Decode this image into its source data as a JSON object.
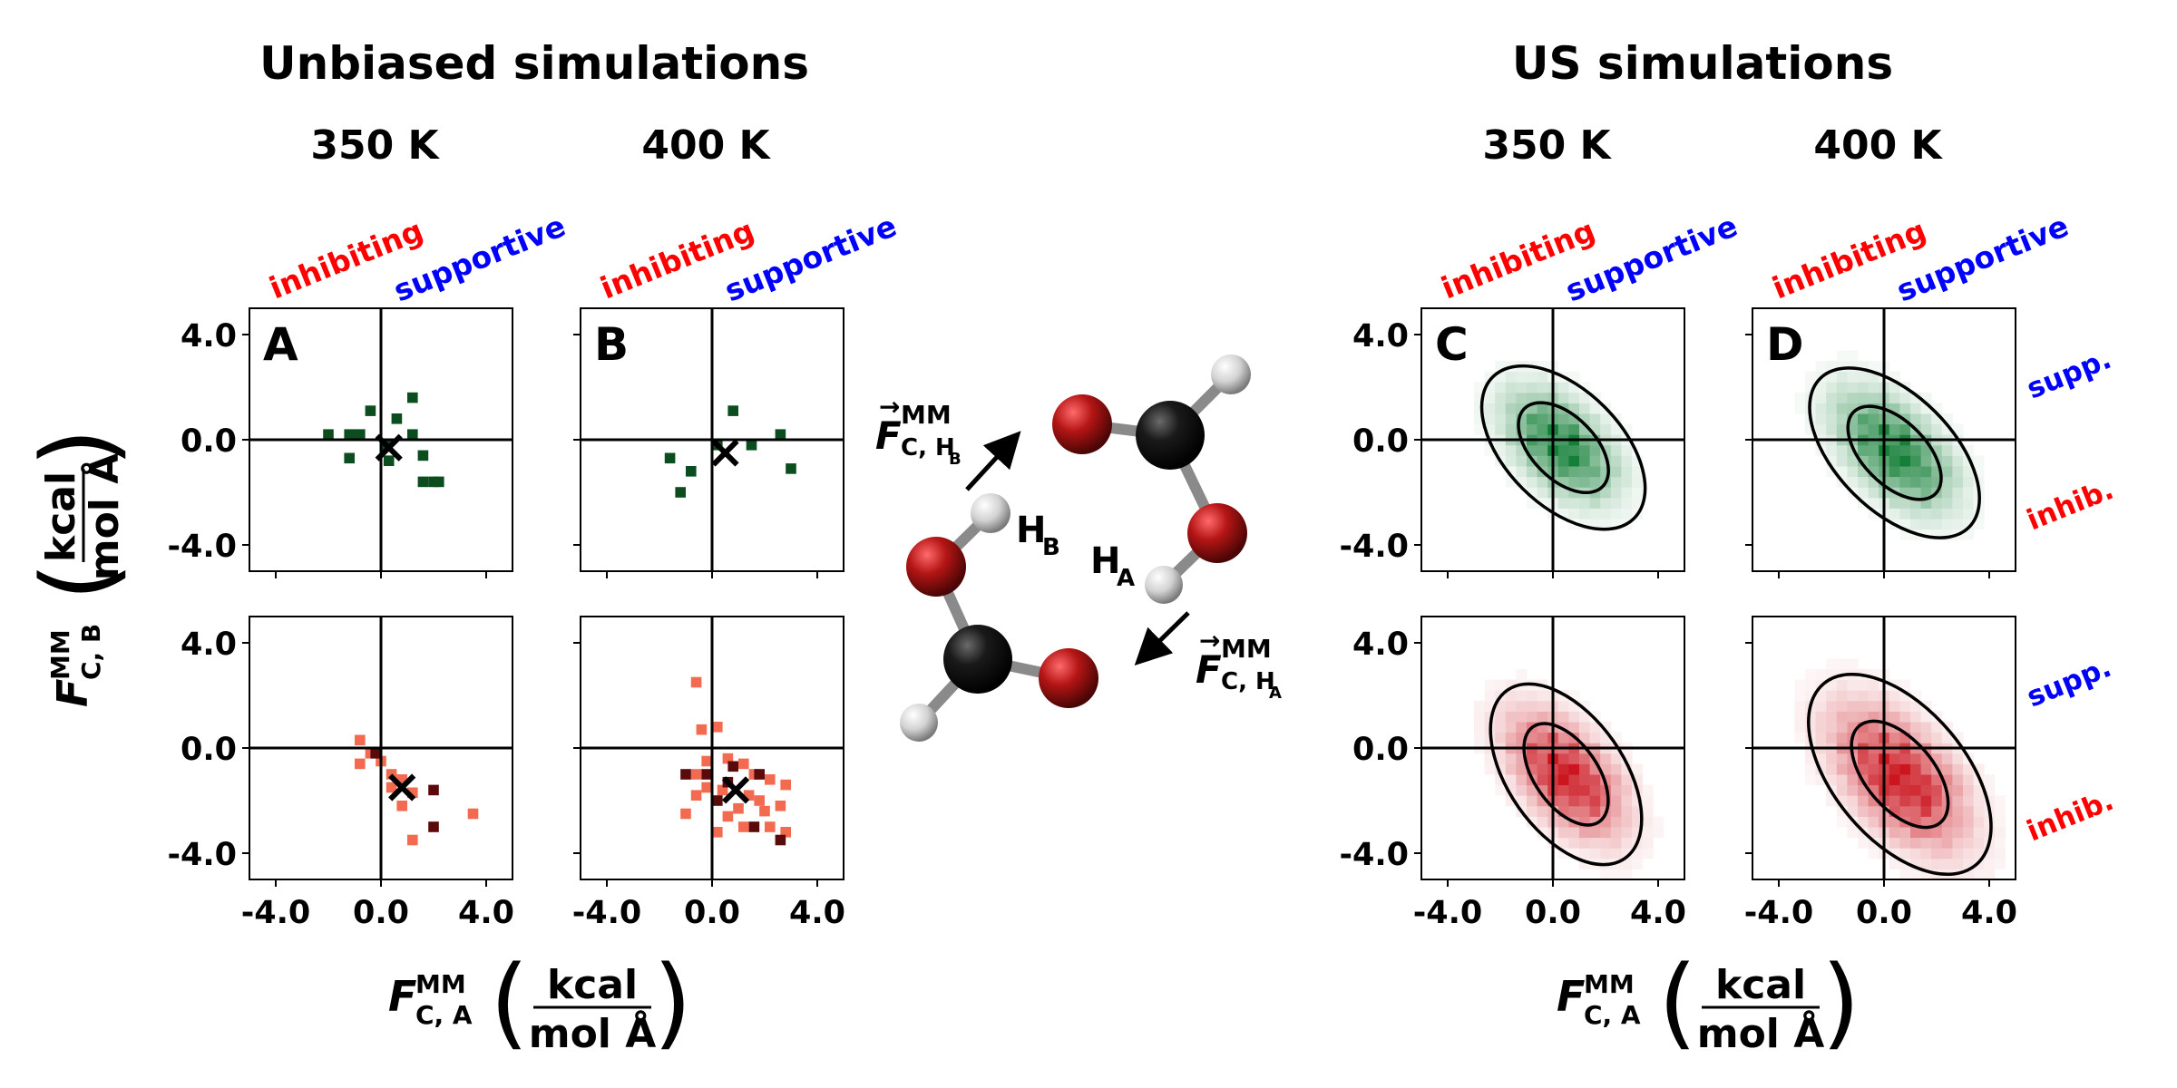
{
  "headers": {
    "left_title": "Unbiased simulations",
    "right_title": "US simulations",
    "temp_350": "350 K",
    "temp_400": "400 K",
    "inhibiting": "inhibiting",
    "supportive": "supportive",
    "supp_short": "supp.",
    "inhib_short": "inhib."
  },
  "axes": {
    "ylabel_main": "F",
    "ylabel_sup": "MM",
    "ylabel_sub": "C, B",
    "xlabel_main": "F",
    "xlabel_sup": "MM",
    "xlabel_sub": "C, A",
    "unit_num": "kcal",
    "unit_den": "mol Å",
    "xlim": [
      -5,
      5
    ],
    "ylim": [
      -5,
      5
    ],
    "ticks": [
      -4,
      0,
      4
    ],
    "tick_labels": [
      "-4.0",
      "0.0",
      "4.0"
    ]
  },
  "molecule": {
    "atom_hb": "H",
    "atom_hb_sub": "B",
    "atom_ha": "H",
    "atom_ha_sub": "A",
    "force_b_main": "F",
    "force_b_sup": "MM",
    "force_b_sub": "C, H",
    "force_b_subsub": "B",
    "force_a_main": "F",
    "force_a_sup": "MM",
    "force_a_sub": "C, H",
    "force_a_subsub": "A"
  },
  "colors": {
    "supportive": "#0000ff",
    "inhibiting": "#ff0000",
    "green_dark": "#0b4d1f",
    "red_light": "#f26b50",
    "red_dark": "#5a0a0a",
    "oxygen": "#b51515",
    "carbon": "#1a1a1a",
    "hydrogen": "#d8d8d8"
  },
  "chart_data": [
    {
      "type": "scatter",
      "panel": "A",
      "row": "green",
      "temperature": "350 K",
      "points": [
        [
          -2,
          0.2
        ],
        [
          -1.2,
          0.2
        ],
        [
          -0.8,
          0.2
        ],
        [
          -0.4,
          1.1
        ],
        [
          0.6,
          0.8
        ],
        [
          1.2,
          1.6
        ],
        [
          1.2,
          0.2
        ],
        [
          -1.2,
          -0.7
        ],
        [
          0.2,
          -0.2
        ],
        [
          0.3,
          -0.8
        ],
        [
          1.6,
          -0.6
        ],
        [
          2.0,
          -1.6
        ],
        [
          2.2,
          -1.6
        ],
        [
          1.6,
          -1.6
        ]
      ],
      "mean": [
        0.3,
        -0.3
      ]
    },
    {
      "type": "scatter",
      "panel": "B",
      "row": "green",
      "temperature": "400 K",
      "points": [
        [
          0.8,
          1.1
        ],
        [
          1.5,
          -0.2
        ],
        [
          2.6,
          0.2
        ],
        [
          3.0,
          -1.1
        ],
        [
          -1.6,
          -0.7
        ],
        [
          -0.8,
          -1.2
        ],
        [
          0.2,
          -0.2
        ],
        [
          -1.2,
          -2.0
        ]
      ],
      "mean": [
        0.5,
        -0.5
      ]
    },
    {
      "type": "scatter",
      "panel": "A",
      "row": "red",
      "temperature": "350 K",
      "points_light": [
        [
          -0.8,
          0.3
        ],
        [
          -0.4,
          -0.2
        ],
        [
          0,
          -0.5
        ],
        [
          -0.8,
          -0.6
        ],
        [
          0.4,
          -1.0
        ],
        [
          0.8,
          -1.2
        ],
        [
          1.2,
          -1.7
        ],
        [
          0.4,
          -1.5
        ],
        [
          0.8,
          -2.2
        ],
        [
          1.2,
          -3.5
        ],
        [
          3.5,
          -2.5
        ]
      ],
      "points_dark": [
        [
          -0.2,
          -0.2
        ],
        [
          2.0,
          -1.6
        ],
        [
          2.0,
          -3.0
        ]
      ],
      "mean": [
        0.8,
        -1.5
      ]
    },
    {
      "type": "scatter",
      "panel": "B",
      "row": "red",
      "temperature": "400 K",
      "points_light": [
        [
          -0.6,
          2.5
        ],
        [
          -0.4,
          0.7
        ],
        [
          0.2,
          0.8
        ],
        [
          -0.2,
          -0.5
        ],
        [
          -0.6,
          -1.0
        ],
        [
          0.6,
          -0.4
        ],
        [
          1.2,
          -0.6
        ],
        [
          1.6,
          -1.0
        ],
        [
          2.2,
          -1.2
        ],
        [
          2.8,
          -1.4
        ],
        [
          -0.2,
          -1.5
        ],
        [
          0.4,
          -1.6
        ],
        [
          1.4,
          -1.8
        ],
        [
          1.8,
          -2.0
        ],
        [
          1.0,
          -2.3
        ],
        [
          2.0,
          -2.4
        ],
        [
          2.6,
          -2.2
        ],
        [
          0.6,
          -2.6
        ],
        [
          1.2,
          -3.0
        ],
        [
          2.2,
          -3.0
        ],
        [
          0.2,
          -3.2
        ],
        [
          -1.0,
          -2.5
        ],
        [
          2.8,
          -3.2
        ],
        [
          -0.6,
          -1.8
        ]
      ],
      "points_dark": [
        [
          -0.2,
          -1.0
        ],
        [
          0.6,
          -1.3
        ],
        [
          1.8,
          -1.0
        ],
        [
          0.2,
          -2.0
        ],
        [
          -1.0,
          -1.0
        ],
        [
          1.6,
          -3.0
        ],
        [
          2.6,
          -3.5
        ],
        [
          0.8,
          -0.7
        ]
      ],
      "mean": [
        0.9,
        -1.6
      ]
    },
    {
      "type": "heatmap",
      "panel": "C",
      "row": "green",
      "temperature": "350 K",
      "center": [
        0.3,
        -0.2
      ],
      "spread": [
        1.3,
        1.3
      ],
      "correlation": -0.5,
      "contours": [
        {
          "center": [
            0.4,
            -0.3
          ],
          "radii": [
            1.2,
            2.1
          ],
          "angle_deg": -45
        },
        {
          "center": [
            0.4,
            -0.3
          ],
          "radii": [
            2.2,
            3.8
          ],
          "angle_deg": -45
        }
      ]
    },
    {
      "type": "heatmap",
      "panel": "D",
      "row": "green",
      "temperature": "400 K",
      "center": [
        0.4,
        -0.4
      ],
      "spread": [
        1.4,
        1.4
      ],
      "correlation": -0.55,
      "contours": [
        {
          "center": [
            0.4,
            -0.5
          ],
          "radii": [
            1.2,
            2.2
          ],
          "angle_deg": -45
        },
        {
          "center": [
            0.4,
            -0.5
          ],
          "radii": [
            2.2,
            4.0
          ],
          "angle_deg": -45
        }
      ]
    },
    {
      "type": "heatmap",
      "panel": "C",
      "row": "red",
      "temperature": "350 K",
      "center": [
        0.5,
        -1.0
      ],
      "spread": [
        1.4,
        1.5
      ],
      "correlation": -0.55,
      "contours": [
        {
          "center": [
            0.5,
            -1.0
          ],
          "radii": [
            1.2,
            2.2
          ],
          "angle_deg": -55
        },
        {
          "center": [
            0.5,
            -1.0
          ],
          "radii": [
            2.2,
            3.9
          ],
          "angle_deg": -55
        }
      ]
    },
    {
      "type": "heatmap",
      "panel": "D",
      "row": "red",
      "temperature": "400 K",
      "center": [
        0.6,
        -1.1
      ],
      "spread": [
        1.6,
        1.7
      ],
      "correlation": -0.55,
      "contours": [
        {
          "center": [
            0.6,
            -1.0
          ],
          "radii": [
            1.3,
            2.4
          ],
          "angle_deg": -50
        },
        {
          "center": [
            0.6,
            -1.0
          ],
          "radii": [
            2.5,
            4.5
          ],
          "angle_deg": -50
        }
      ]
    }
  ]
}
